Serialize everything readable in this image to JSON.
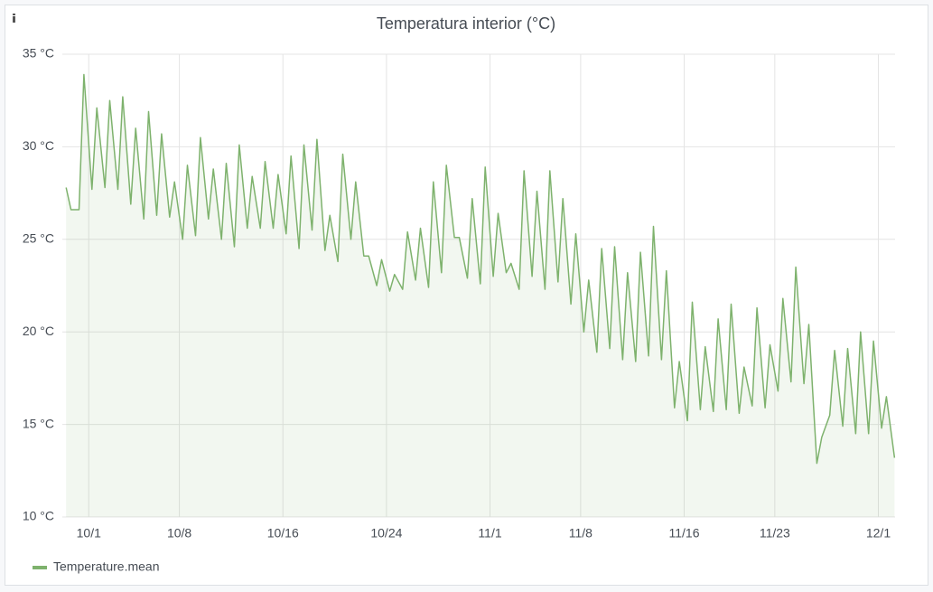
{
  "chart_data": {
    "type": "line",
    "title": "Temperatura interior (°C)",
    "x": [
      "9/29 06:00",
      "9/29 15:00",
      "9/30 06:00",
      "9/30 15:00",
      "10/1 06:00",
      "10/1 15:00",
      "10/2 06:00",
      "10/2 15:00",
      "10/3 06:00",
      "10/3 15:00",
      "10/4 06:00",
      "10/4 15:00",
      "10/5 06:00",
      "10/5 15:00",
      "10/6 06:00",
      "10/6 15:00",
      "10/7 06:00",
      "10/7 15:00",
      "10/8 06:00",
      "10/8 15:00",
      "10/9 06:00",
      "10/9 15:00",
      "10/10 06:00",
      "10/10 15:00",
      "10/11 06:00",
      "10/11 15:00",
      "10/12 06:00",
      "10/12 15:00",
      "10/13 06:00",
      "10/13 15:00",
      "10/14 06:00",
      "10/14 15:00",
      "10/15 06:00",
      "10/15 15:00",
      "10/16 06:00",
      "10/16 15:00",
      "10/17 06:00",
      "10/17 15:00",
      "10/18 06:00",
      "10/18 15:00",
      "10/19 06:00",
      "10/19 15:00",
      "10/20 06:00",
      "10/20 15:00",
      "10/21 06:00",
      "10/21 15:00",
      "10/22 06:00",
      "10/22 15:00",
      "10/23 06:00",
      "10/23 15:00",
      "10/24 06:00",
      "10/24 15:00",
      "10/25 06:00",
      "10/25 15:00",
      "10/26 06:00",
      "10/26 15:00",
      "10/27 06:00",
      "10/27 15:00",
      "10/28 06:00",
      "10/28 15:00",
      "10/29 06:00",
      "10/29 15:00",
      "10/30 06:00",
      "10/30 15:00",
      "10/31 06:00",
      "10/31 15:00",
      "11/1 06:00",
      "11/1 15:00",
      "11/2 06:00",
      "11/2 15:00",
      "11/3 06:00",
      "11/3 15:00",
      "11/4 06:00",
      "11/4 15:00",
      "11/5 06:00",
      "11/5 15:00",
      "11/6 06:00",
      "11/6 15:00",
      "11/7 06:00",
      "11/7 15:00",
      "11/8 06:00",
      "11/8 15:00",
      "11/9 06:00",
      "11/9 15:00",
      "11/10 06:00",
      "11/10 15:00",
      "11/11 06:00",
      "11/11 15:00",
      "11/12 06:00",
      "11/12 15:00",
      "11/13 06:00",
      "11/13 15:00",
      "11/14 06:00",
      "11/14 15:00",
      "11/15 06:00",
      "11/15 15:00",
      "11/16 06:00",
      "11/16 15:00",
      "11/17 06:00",
      "11/17 15:00",
      "11/18 06:00",
      "11/18 15:00",
      "11/19 06:00",
      "11/19 15:00",
      "11/20 06:00",
      "11/20 15:00",
      "11/21 06:00",
      "11/21 15:00",
      "11/22 06:00",
      "11/22 15:00",
      "11/23 06:00",
      "11/23 15:00",
      "11/24 06:00",
      "11/24 15:00",
      "11/25 06:00",
      "11/25 15:00",
      "11/26 06:00",
      "11/26 15:00",
      "11/27 06:00",
      "11/27 15:00",
      "11/28 06:00",
      "11/28 15:00",
      "11/29 06:00",
      "11/29 15:00",
      "11/30 06:00",
      "11/30 15:00",
      "12/1 06:00",
      "12/1 15:00",
      "12/2 06:00"
    ],
    "series": [
      {
        "name": "Temperature.mean",
        "color": "#7eb26d",
        "values": [
          27.8,
          26.6,
          26.6,
          33.9,
          27.7,
          32.1,
          27.8,
          32.5,
          27.7,
          32.7,
          26.9,
          31.0,
          26.1,
          31.9,
          26.3,
          30.7,
          26.2,
          28.1,
          25.0,
          29.0,
          25.2,
          30.5,
          26.1,
          28.8,
          25.0,
          29.1,
          24.6,
          30.1,
          25.6,
          28.4,
          25.6,
          29.2,
          25.6,
          28.5,
          25.3,
          29.5,
          24.5,
          30.1,
          25.5,
          30.4,
          24.4,
          26.3,
          23.8,
          29.6,
          25.0,
          28.1,
          24.1,
          24.1,
          22.5,
          23.9,
          22.2,
          23.1,
          22.3,
          25.4,
          22.8,
          25.6,
          22.4,
          28.1,
          23.2,
          29.0,
          25.1,
          25.1,
          22.9,
          27.2,
          22.6,
          28.9,
          23.0,
          26.4,
          23.2,
          23.7,
          22.3,
          28.7,
          23.0,
          27.6,
          22.3,
          28.7,
          22.7,
          27.2,
          21.5,
          25.3,
          20.0,
          22.8,
          18.9,
          24.5,
          19.1,
          24.6,
          18.5,
          23.2,
          18.4,
          24.3,
          18.7,
          25.7,
          18.5,
          23.3,
          15.9,
          18.4,
          15.2,
          21.6,
          15.8,
          19.2,
          15.7,
          20.7,
          15.8,
          21.5,
          15.6,
          18.1,
          16.0,
          21.3,
          15.9,
          19.3,
          16.8,
          21.8,
          17.3,
          23.5,
          17.2,
          20.4,
          12.9,
          14.3,
          15.5,
          19.0,
          14.9,
          19.1,
          14.5,
          20.0,
          14.5,
          19.5,
          14.8,
          16.5,
          13.2
        ]
      }
    ],
    "xlim": [
      "9/28 23:00",
      "12/2 07:00"
    ],
    "xticks": [
      "10/1",
      "10/8",
      "10/16",
      "10/24",
      "11/1",
      "11/8",
      "11/16",
      "11/23",
      "12/1"
    ],
    "ylim": [
      10,
      35
    ],
    "yticks": [
      {
        "value": 10,
        "label": "10 °C"
      },
      {
        "value": 15,
        "label": "15 °C"
      },
      {
        "value": 20,
        "label": "20 °C"
      },
      {
        "value": 25,
        "label": "25 °C"
      },
      {
        "value": 30,
        "label": "30 °C"
      },
      {
        "value": 35,
        "label": "35 °C"
      }
    ],
    "grid": true,
    "legend": "bottom-left"
  }
}
